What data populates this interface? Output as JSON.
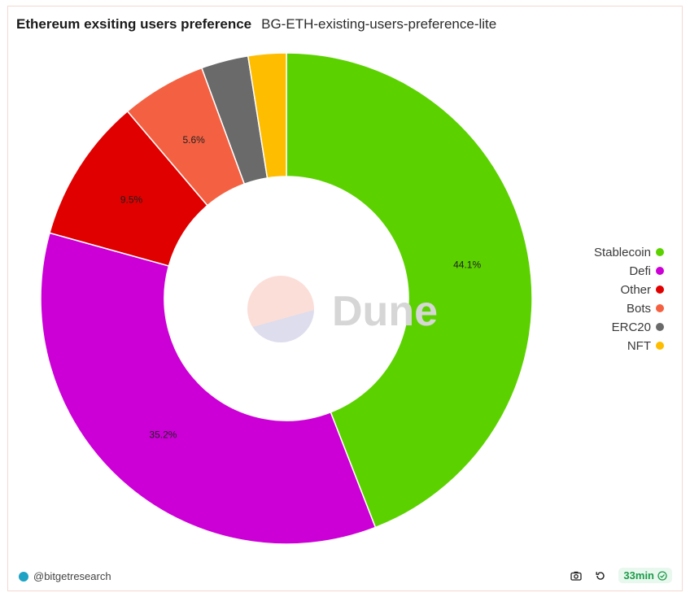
{
  "header": {
    "title": "Ethereum exsiting users preference",
    "subtitle": "BG-ETH-existing-users-preference-lite"
  },
  "watermark": {
    "text": "Dune"
  },
  "footer": {
    "author": "@bitgetresearch",
    "refresh_status": "33min",
    "icons": [
      "camera-icon",
      "refresh-icon",
      "check-circle-icon"
    ]
  },
  "colors": {
    "Stablecoin": "#5bd200",
    "Defi": "#cc00d6",
    "Other": "#e00000",
    "Bots": "#f46142",
    "ERC20": "#6a6a6a",
    "NFT": "#ffbd00"
  },
  "chart_data": {
    "type": "pie",
    "style": "donut",
    "title": "Ethereum exsiting users preference",
    "legend_position": "right",
    "categories": [
      "Stablecoin",
      "Defi",
      "Other",
      "Bots",
      "ERC20",
      "NFT"
    ],
    "values": [
      44.1,
      35.2,
      9.5,
      5.6,
      3.1,
      2.5
    ],
    "labels": [
      "44.1%",
      "35.2%",
      "9.5%",
      "5.6%",
      "",
      ""
    ]
  }
}
